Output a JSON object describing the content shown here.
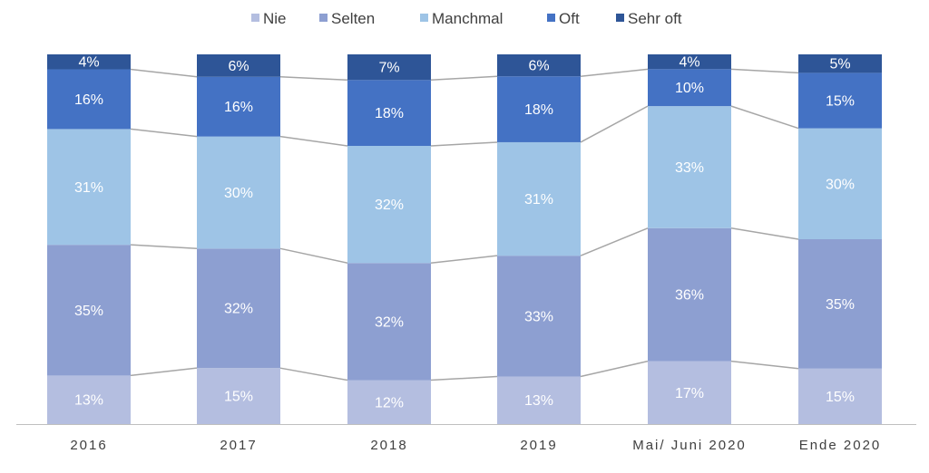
{
  "colors": {
    "Nie": "#b4bee0",
    "Selten": "#8d9fd1",
    "Manchmal": "#9ec4e6",
    "Oft": "#4472c4",
    "Sehr oft": "#2e5597",
    "connector": "#a6a6a6",
    "axis": "#bfbfbf"
  },
  "chart_data": {
    "type": "bar",
    "stacked": true,
    "normalized": true,
    "categories": [
      "2016",
      "2017",
      "2018",
      "2019",
      "Mai/ Juni 2020",
      "Ende 2020"
    ],
    "series": [
      {
        "name": "Nie",
        "values": [
          13,
          15,
          12,
          13,
          17,
          15
        ],
        "labels": [
          "13%",
          "15%",
          "12%",
          "13%",
          "17%",
          "15%"
        ]
      },
      {
        "name": "Selten",
        "values": [
          35,
          32,
          32,
          33,
          36,
          35
        ],
        "labels": [
          "35%",
          "32%",
          "32%",
          "33%",
          "36%",
          "35%"
        ]
      },
      {
        "name": "Manchmal",
        "values": [
          31,
          30,
          32,
          31,
          33,
          30
        ],
        "labels": [
          "31%",
          "30%",
          "32%",
          "31%",
          "33%",
          "30%"
        ]
      },
      {
        "name": "Oft",
        "values": [
          16,
          16,
          18,
          18,
          10,
          15
        ],
        "labels": [
          "16%",
          "16%",
          "18%",
          "18%",
          "10%",
          "15%"
        ]
      },
      {
        "name": "Sehr oft",
        "values": [
          4,
          6,
          7,
          6,
          4,
          5
        ],
        "labels": [
          "4%",
          "6%",
          "7%",
          "6%",
          "4%",
          "5%"
        ]
      }
    ],
    "legend_position": "top",
    "series_lines": true,
    "title": "",
    "xlabel": "",
    "ylabel": ""
  }
}
